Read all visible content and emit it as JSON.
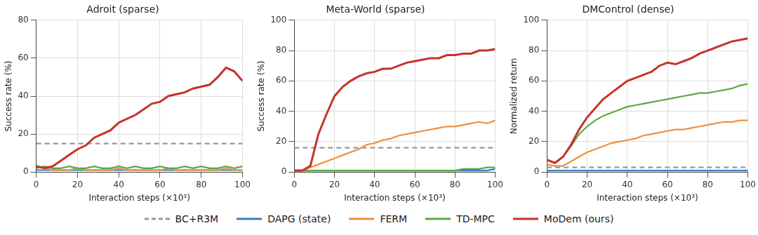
{
  "chart_data": [
    {
      "type": "line",
      "title": "Adroit (sparse)",
      "x_label": "Interaction steps (×10³)",
      "y_label": "Success rate (%)",
      "xlim": [
        0,
        100
      ],
      "xticks": [
        0,
        20,
        40,
        60,
        80,
        100
      ],
      "ylim": [
        0,
        80
      ],
      "yticks": [
        0,
        20,
        40,
        60,
        80
      ],
      "grid": true,
      "legend": "bottom",
      "x": [
        0,
        4,
        8,
        12,
        16,
        20,
        24,
        28,
        32,
        36,
        40,
        44,
        48,
        52,
        56,
        60,
        64,
        68,
        72,
        76,
        80,
        84,
        88,
        92,
        96,
        100
      ],
      "series": [
        {
          "name": "BC+R3M",
          "color": "#999999",
          "line_style": "dashed",
          "values": [
            15,
            15,
            15,
            15,
            15,
            15,
            15,
            15,
            15,
            15,
            15,
            15,
            15,
            15,
            15,
            15,
            15,
            15,
            15,
            15,
            15,
            15,
            15,
            15,
            15,
            15
          ]
        },
        {
          "name": "DAPG (state)",
          "color": "#3b7dc4",
          "line_style": "solid",
          "values": [
            1,
            1,
            1,
            1,
            1,
            1,
            1,
            1,
            1,
            1,
            1,
            1,
            1,
            1,
            1,
            1,
            1,
            1,
            1,
            1,
            1,
            1,
            1,
            1,
            1,
            1
          ]
        },
        {
          "name": "FERM",
          "color": "#f0903a",
          "line_style": "solid",
          "values": [
            3,
            2,
            1,
            1,
            1,
            2,
            1,
            1,
            1,
            1,
            2,
            1,
            1,
            1,
            1,
            1,
            2,
            1,
            1,
            1,
            1,
            1,
            1,
            2,
            1,
            1
          ]
        },
        {
          "name": "TD-MPC",
          "color": "#5aa845",
          "line_style": "solid",
          "values": [
            2,
            3,
            2,
            2,
            3,
            2,
            2,
            3,
            2,
            2,
            3,
            2,
            3,
            2,
            2,
            3,
            2,
            2,
            3,
            2,
            3,
            2,
            2,
            3,
            2,
            3
          ]
        },
        {
          "name": "MoDem (ours)",
          "color": "#c8312a",
          "line_style": "solid",
          "values": [
            3,
            2,
            3,
            6,
            9,
            12,
            14,
            18,
            20,
            22,
            26,
            28,
            30,
            33,
            36,
            37,
            40,
            41,
            42,
            44,
            45,
            46,
            50,
            55,
            53,
            48
          ]
        }
      ]
    },
    {
      "type": "line",
      "title": "Meta-World (sparse)",
      "x_label": "Interaction steps (×10³)",
      "y_label": "Success rate (%)",
      "xlim": [
        0,
        100
      ],
      "xticks": [
        0,
        20,
        40,
        60,
        80,
        100
      ],
      "ylim": [
        0,
        100
      ],
      "yticks": [
        0,
        20,
        40,
        60,
        80,
        100
      ],
      "grid": true,
      "x": [
        0,
        4,
        8,
        12,
        16,
        20,
        24,
        28,
        32,
        36,
        40,
        44,
        48,
        52,
        56,
        60,
        64,
        68,
        72,
        76,
        80,
        84,
        88,
        92,
        96,
        100
      ],
      "series": [
        {
          "name": "BC+R3M",
          "color": "#999999",
          "line_style": "dashed",
          "values": [
            16,
            16,
            16,
            16,
            16,
            16,
            16,
            16,
            16,
            16,
            16,
            16,
            16,
            16,
            16,
            16,
            16,
            16,
            16,
            16,
            16,
            16,
            16,
            16,
            16,
            16
          ]
        },
        {
          "name": "DAPG (state)",
          "color": "#3b7dc4",
          "line_style": "solid",
          "values": [
            1,
            1,
            1,
            1,
            1,
            1,
            1,
            1,
            1,
            1,
            1,
            1,
            1,
            1,
            1,
            1,
            1,
            1,
            1,
            1,
            1,
            1,
            1,
            1,
            1,
            2
          ]
        },
        {
          "name": "FERM",
          "color": "#f0903a",
          "line_style": "solid",
          "values": [
            0,
            1,
            3,
            5,
            7,
            9,
            11,
            13,
            15,
            18,
            19,
            21,
            22,
            24,
            25,
            26,
            27,
            28,
            29,
            30,
            30,
            31,
            32,
            33,
            32,
            34
          ]
        },
        {
          "name": "TD-MPC",
          "color": "#5aa845",
          "line_style": "solid",
          "values": [
            1,
            1,
            1,
            1,
            1,
            1,
            1,
            1,
            1,
            1,
            1,
            1,
            1,
            1,
            1,
            1,
            1,
            1,
            1,
            1,
            1,
            2,
            2,
            2,
            3,
            3
          ]
        },
        {
          "name": "MoDem (ours)",
          "color": "#c8312a",
          "line_style": "solid",
          "values": [
            1,
            1,
            4,
            25,
            38,
            50,
            56,
            60,
            63,
            65,
            66,
            68,
            68,
            70,
            72,
            73,
            74,
            75,
            75,
            77,
            77,
            78,
            78,
            80,
            80,
            81
          ]
        }
      ]
    },
    {
      "type": "line",
      "title": "DMControl (dense)",
      "x_label": "Interaction steps (×10³)",
      "y_label": "Normalized return",
      "xlim": [
        0,
        100
      ],
      "xticks": [
        0,
        20,
        40,
        60,
        80,
        100
      ],
      "ylim": [
        0,
        100
      ],
      "yticks": [
        0,
        20,
        40,
        60,
        80,
        100
      ],
      "grid": true,
      "x": [
        0,
        4,
        8,
        12,
        16,
        20,
        24,
        28,
        32,
        36,
        40,
        44,
        48,
        52,
        56,
        60,
        64,
        68,
        72,
        76,
        80,
        84,
        88,
        92,
        96,
        100
      ],
      "series": [
        {
          "name": "BC+R3M",
          "color": "#999999",
          "line_style": "dashed",
          "values": [
            3,
            3,
            3,
            3,
            3,
            3,
            3,
            3,
            3,
            3,
            3,
            3,
            3,
            3,
            3,
            3,
            3,
            3,
            3,
            3,
            3,
            3,
            3,
            3,
            3,
            3
          ]
        },
        {
          "name": "DAPG (state)",
          "color": "#3b7dc4",
          "line_style": "solid",
          "values": [
            1,
            1,
            1,
            1,
            1,
            1,
            1,
            1,
            1,
            1,
            1,
            1,
            1,
            1,
            1,
            1,
            1,
            1,
            1,
            1,
            1,
            1,
            1,
            1,
            1,
            1
          ]
        },
        {
          "name": "FERM",
          "color": "#f0903a",
          "line_style": "solid",
          "values": [
            5,
            4,
            4,
            7,
            10,
            13,
            15,
            17,
            19,
            20,
            21,
            22,
            24,
            25,
            26,
            27,
            28,
            28,
            29,
            30,
            31,
            32,
            33,
            33,
            34,
            34
          ]
        },
        {
          "name": "TD-MPC",
          "color": "#5aa845",
          "line_style": "solid",
          "values": [
            8,
            6,
            10,
            17,
            25,
            30,
            34,
            37,
            39,
            41,
            43,
            44,
            45,
            46,
            47,
            48,
            49,
            50,
            51,
            52,
            52,
            53,
            54,
            55,
            57,
            58
          ]
        },
        {
          "name": "MoDem (ours)",
          "color": "#c8312a",
          "line_style": "solid",
          "values": [
            8,
            6,
            10,
            18,
            28,
            36,
            42,
            48,
            52,
            56,
            60,
            62,
            64,
            66,
            70,
            72,
            71,
            73,
            75,
            78,
            80,
            82,
            84,
            86,
            87,
            88
          ]
        }
      ]
    }
  ]
}
